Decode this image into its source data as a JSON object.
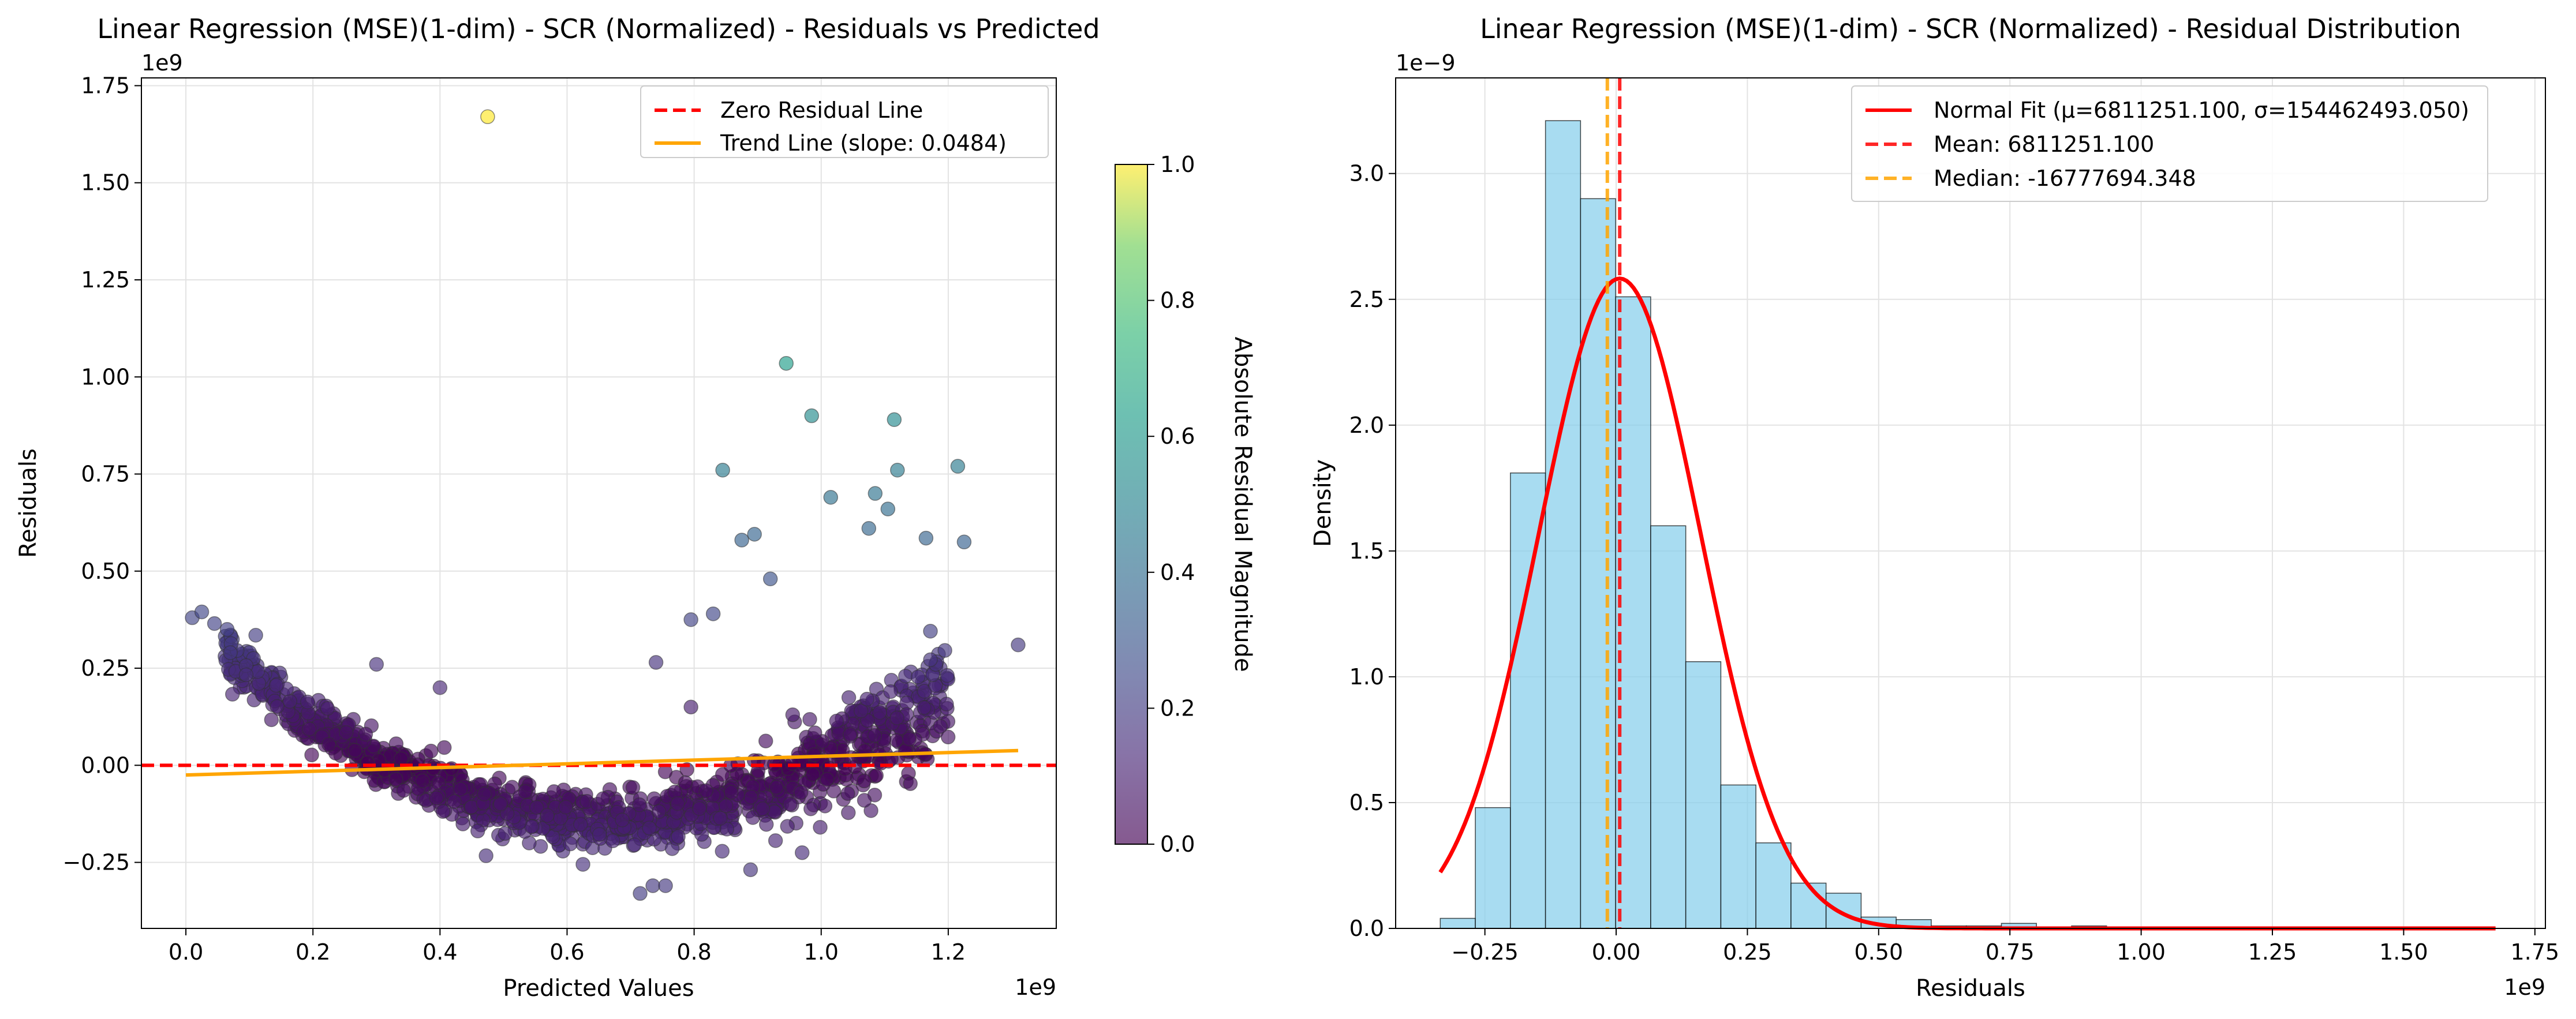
{
  "chart_data": [
    {
      "type": "scatter",
      "title": "Linear Regression (MSE)(1-dim) - SCR (Normalized) - Residuals vs Predicted",
      "xlabel": "Predicted Values",
      "ylabel": "Residuals",
      "x_exponent": "1e9",
      "y_exponent": "1e9",
      "xlim": [
        -0.07,
        1.37
      ],
      "ylim": [
        -0.42,
        1.77
      ],
      "xticks": [
        0.0,
        0.2,
        0.4,
        0.6,
        0.8,
        1.0,
        1.2
      ],
      "xtick_labels": [
        "0.0",
        "0.2",
        "0.4",
        "0.6",
        "0.8",
        "1.0",
        "1.2"
      ],
      "yticks": [
        -0.25,
        0.0,
        0.25,
        0.5,
        0.75,
        1.0,
        1.25,
        1.5,
        1.75
      ],
      "ytick_labels": [
        "−0.25",
        "0.00",
        "0.25",
        "0.50",
        "0.75",
        "1.00",
        "1.25",
        "1.50",
        "1.75"
      ],
      "grid": true,
      "legend_position": "top-right",
      "lines": [
        {
          "name": "Zero Residual Line",
          "color": "#ff0000",
          "style": "dashed",
          "x": [
            -0.07,
            1.37
          ],
          "y": [
            0.0,
            0.0
          ]
        },
        {
          "name": "Trend Line (slope: 0.0484)",
          "color": "#ffa500",
          "style": "solid",
          "x": [
            0.0,
            1.31
          ],
          "y": [
            -0.025,
            0.038
          ]
        }
      ],
      "outliers": [
        {
          "x": 0.475,
          "y": 1.67
        },
        {
          "x": 0.945,
          "y": 1.035
        },
        {
          "x": 0.985,
          "y": 0.9
        },
        {
          "x": 1.115,
          "y": 0.89
        },
        {
          "x": 1.215,
          "y": 0.77
        },
        {
          "x": 1.12,
          "y": 0.76
        },
        {
          "x": 0.845,
          "y": 0.76
        },
        {
          "x": 1.015,
          "y": 0.69
        },
        {
          "x": 1.085,
          "y": 0.7
        },
        {
          "x": 1.105,
          "y": 0.66
        },
        {
          "x": 1.075,
          "y": 0.61
        },
        {
          "x": 0.895,
          "y": 0.595
        },
        {
          "x": 0.875,
          "y": 0.58
        },
        {
          "x": 1.165,
          "y": 0.585
        },
        {
          "x": 1.225,
          "y": 0.575
        },
        {
          "x": 1.31,
          "y": 0.31
        },
        {
          "x": 0.01,
          "y": 0.38
        },
        {
          "x": 0.025,
          "y": 0.395
        },
        {
          "x": 0.045,
          "y": 0.365
        },
        {
          "x": 0.065,
          "y": 0.35
        },
        {
          "x": 0.11,
          "y": 0.335
        },
        {
          "x": 0.07,
          "y": 0.29
        },
        {
          "x": 0.3,
          "y": 0.26
        },
        {
          "x": 0.4,
          "y": 0.2
        },
        {
          "x": 0.74,
          "y": 0.265
        },
        {
          "x": 0.795,
          "y": 0.15
        },
        {
          "x": 0.83,
          "y": 0.39
        },
        {
          "x": 0.795,
          "y": 0.375
        },
        {
          "x": 0.92,
          "y": 0.48
        },
        {
          "x": 0.735,
          "y": -0.31
        },
        {
          "x": 0.755,
          "y": -0.31
        },
        {
          "x": 0.715,
          "y": -0.33
        },
        {
          "x": 0.625,
          "y": -0.255
        },
        {
          "x": 0.97,
          "y": -0.225
        }
      ],
      "colorbar": {
        "label": "Absolute Residual Magnitude",
        "colormap": "viridis",
        "range": [
          0.0,
          1.0
        ],
        "ticks": [
          "0.0",
          "0.2",
          "0.4",
          "0.6",
          "0.8",
          "1.0"
        ]
      }
    },
    {
      "type": "bar",
      "title": "Linear Regression (MSE)(1-dim) - SCR (Normalized) - Residual Distribution",
      "xlabel": "Residuals",
      "ylabel": "Density",
      "x_exponent": "1e9",
      "y_exponent": "1e−9",
      "xlim": [
        -0.42,
        1.77
      ],
      "ylim": [
        0,
        3.38
      ],
      "xticks": [
        -0.25,
        0.0,
        0.25,
        0.5,
        0.75,
        1.0,
        1.25,
        1.5,
        1.75
      ],
      "xtick_labels": [
        "−0.25",
        "0.00",
        "0.25",
        "0.50",
        "0.75",
        "1.00",
        "1.25",
        "1.50",
        "1.75"
      ],
      "yticks": [
        0.0,
        0.5,
        1.0,
        1.5,
        2.0,
        2.5,
        3.0
      ],
      "ytick_labels": [
        "0.0",
        "0.5",
        "1.0",
        "1.5",
        "2.0",
        "2.5",
        "3.0"
      ],
      "grid": true,
      "legend_position": "top-right",
      "bin_start": -0.335,
      "bin_width": 0.0668,
      "values": [
        0.04,
        0.48,
        1.81,
        3.21,
        2.9,
        2.51,
        1.6,
        1.06,
        0.57,
        0.34,
        0.18,
        0.14,
        0.045,
        0.035,
        0.01,
        0.01,
        0.02,
        0.0,
        0.01,
        0.0,
        0.0,
        0.0,
        0.0,
        0.0,
        0.0,
        0.0,
        0.0,
        0.0,
        0.0,
        0.005
      ],
      "bar_color": "#87ceeb",
      "normal_fit": {
        "label": "Normal Fit (μ=6811251.100, σ=154462493.050)",
        "mu": 0.006811,
        "sigma": 0.154462,
        "color": "#ff0000"
      },
      "mean": {
        "label": "Mean: 6811251.100",
        "value": 0.006811,
        "color": "#ff0000"
      },
      "median": {
        "label": "Median: -16777694.348",
        "value": -0.016778,
        "color": "#ffa500"
      }
    }
  ]
}
